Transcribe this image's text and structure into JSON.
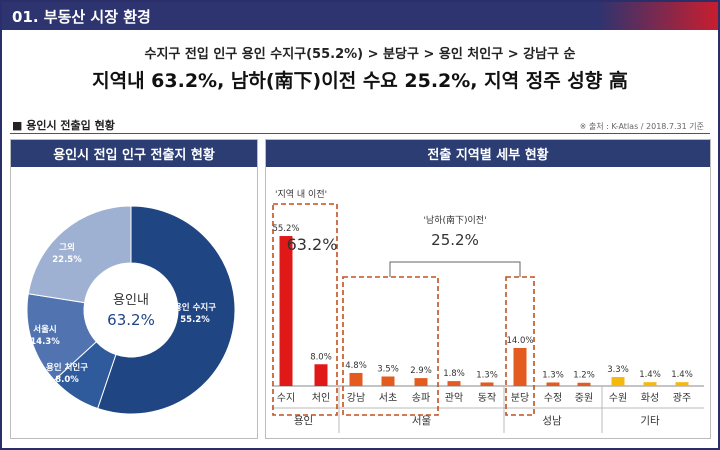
{
  "header": {
    "title": "01. 부동산 시장 환경"
  },
  "subtitle": {
    "line1": "수지구 전입 인구 용인 수지구(55.2%) > 분당구 > 용인 처인구 > 강남구 순",
    "line2": "지역내 63.2%, 남하(南下)이전 수요 25.2%, 지역 정주 성향 高"
  },
  "section": {
    "title": "■ 용인시 전출입 현황",
    "source": "※ 출처 : K-Atlas / 2018.7.31 기준"
  },
  "colors": {
    "header": "#2e3470",
    "panel_head": "#2b3d73",
    "bar_local": "#e01818",
    "bar_other": "#e35b1e",
    "bar_misc": "#f5b80c",
    "dashed": "#c1501e"
  },
  "chart_data": [
    {
      "type": "pie",
      "title": "용인시 전입 인구 전출지 현황",
      "center_label": "용인내",
      "center_value": "63.2%",
      "slices": [
        {
          "label": "용인 수지구",
          "value": 55.2,
          "color": "#1f4583"
        },
        {
          "label": "용인 처인구",
          "value": 8.0,
          "color": "#2f5a9c"
        },
        {
          "label": "서울시",
          "value": 14.3,
          "color": "#5174b0"
        },
        {
          "label": "그외",
          "value": 22.5,
          "color": "#9fb1d2"
        }
      ],
      "slice_labels": [
        "용인 수지구",
        "55.2%",
        "용인 처인구",
        "8.0%",
        "서울시",
        "14.3%",
        "그외",
        "22.5%"
      ]
    },
    {
      "type": "bar",
      "title": "전출 지역별 세부 현황",
      "categories": [
        "수지",
        "처인",
        "강남",
        "서초",
        "송파",
        "관악",
        "동작",
        "분당",
        "수정",
        "중원",
        "수원",
        "화성",
        "광주"
      ],
      "values": [
        55.2,
        8.0,
        4.8,
        3.5,
        2.9,
        1.8,
        1.3,
        14.0,
        1.3,
        1.2,
        3.3,
        1.4,
        1.4
      ],
      "value_labels": [
        "55.2%",
        "8.0%",
        "4.8%",
        "3.5%",
        "2.9%",
        "1.8%",
        "1.3%",
        "14.0%",
        "1.3%",
        "1.2%",
        "3.3%",
        "1.4%",
        "1.4%"
      ],
      "groups": [
        {
          "name": "용인",
          "start": 0,
          "end": 1
        },
        {
          "name": "서울",
          "start": 2,
          "end": 6
        },
        {
          "name": "성남",
          "start": 7,
          "end": 9
        },
        {
          "name": "기타",
          "start": 10,
          "end": 12
        }
      ],
      "annotations": {
        "local_label": "'지역 내 이전'",
        "local_value": "63.2%",
        "south_label": "'남하(南下)이전'",
        "south_value": "25.2%"
      }
    }
  ]
}
